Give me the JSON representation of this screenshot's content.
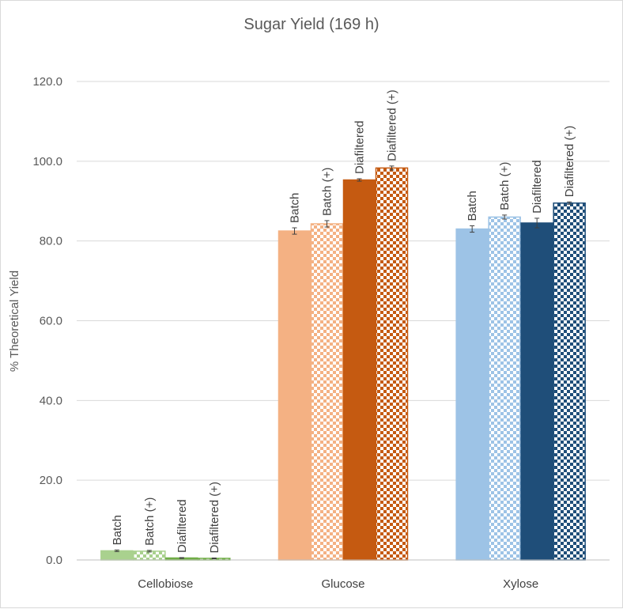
{
  "chart_data": {
    "type": "bar",
    "title": "Sugar Yield (169 h)",
    "xlabel": "",
    "ylabel": "% Theoretical Yield",
    "ylim": [
      0,
      120
    ],
    "yticks": [
      "0.0",
      "20.0",
      "40.0",
      "60.0",
      "80.0",
      "100.0",
      "120.0"
    ],
    "categories": [
      "Cellobiose",
      "Glucose",
      "Xylose"
    ],
    "series": [
      {
        "name": "Batch",
        "pattern": "solid",
        "shade": "light",
        "values": [
          2.3,
          82.5,
          83.0
        ],
        "errors": [
          0.2,
          0.8,
          0.8
        ]
      },
      {
        "name": "Batch (+)",
        "pattern": "checker",
        "shade": "light",
        "values": [
          2.2,
          84.3,
          86.0
        ],
        "errors": [
          0.2,
          0.8,
          0.5
        ]
      },
      {
        "name": "Diafiltered",
        "pattern": "solid",
        "shade": "dark",
        "values": [
          0.5,
          95.3,
          84.5
        ],
        "errors": [
          0.1,
          0.3,
          1.2
        ]
      },
      {
        "name": "Diafiltered (+)",
        "pattern": "checker",
        "shade": "dark",
        "values": [
          0.4,
          98.3,
          89.5
        ],
        "errors": [
          0.1,
          0.5,
          0.3
        ]
      }
    ],
    "colors": {
      "Cellobiose": {
        "light": "#a9d18e",
        "dark": "#70ad47"
      },
      "Glucose": {
        "light": "#f4b183",
        "dark": "#c55a11"
      },
      "Xylose": {
        "light": "#9dc3e6",
        "dark": "#1f4e79"
      }
    },
    "gridlines": true,
    "legend": "none"
  }
}
